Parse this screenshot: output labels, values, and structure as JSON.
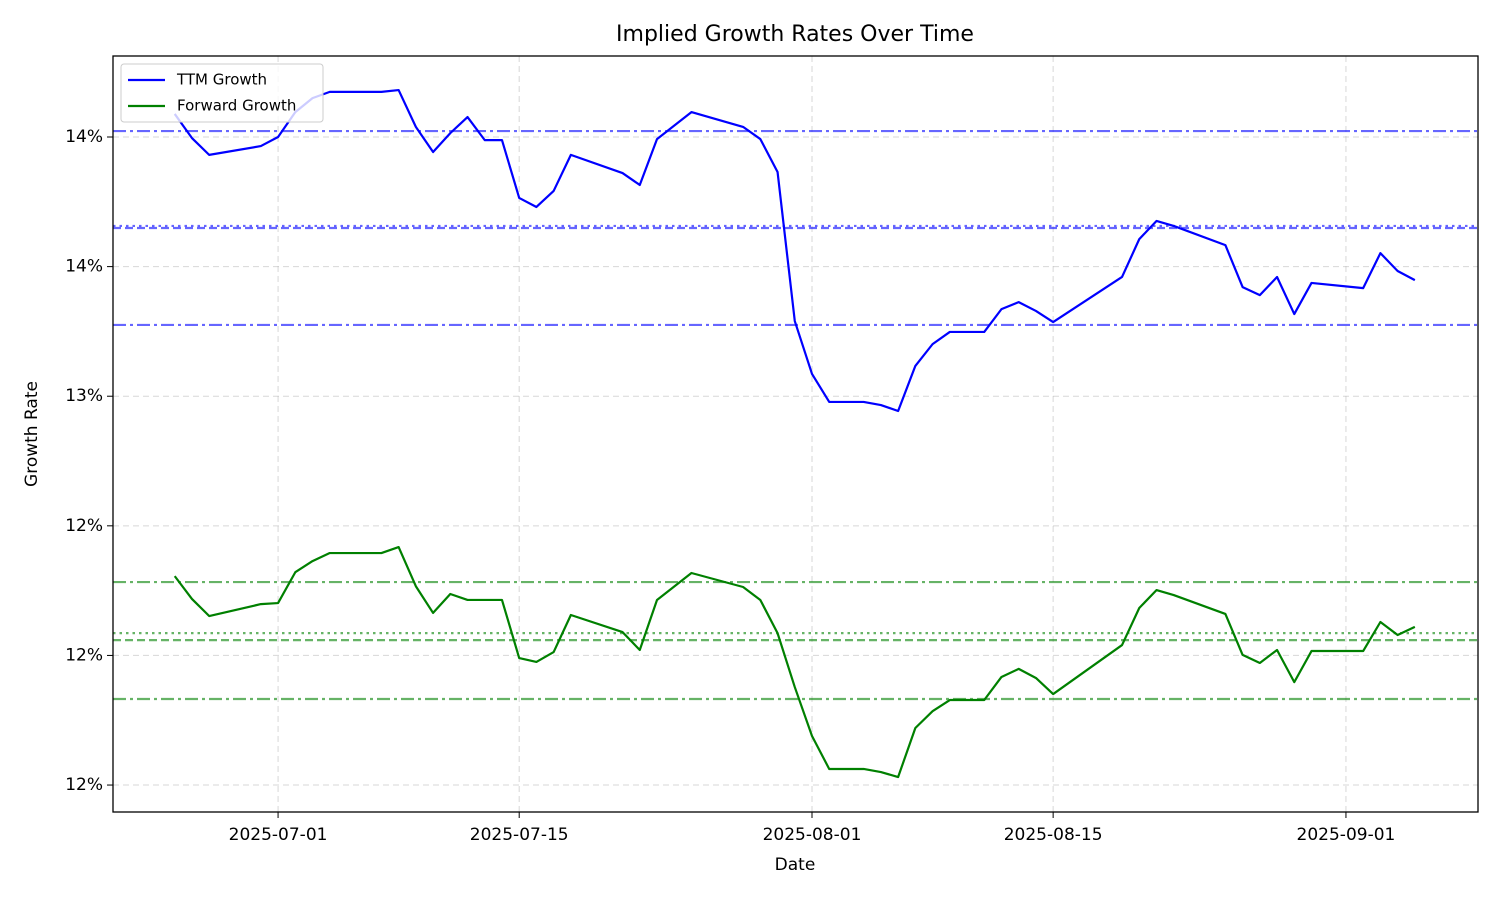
{
  "chart_data": {
    "type": "line",
    "title": "Implied Growth Rates Over Time",
    "x_label": "Date",
    "y_label": "Growth Rate",
    "x": [
      "2025-06-25",
      "2025-06-26",
      "2025-06-27",
      "2025-06-30",
      "2025-07-01",
      "2025-07-02",
      "2025-07-03",
      "2025-07-04",
      "2025-07-07",
      "2025-07-08",
      "2025-07-09",
      "2025-07-10",
      "2025-07-11",
      "2025-07-12",
      "2025-07-13",
      "2025-07-14",
      "2025-07-15",
      "2025-07-16",
      "2025-07-17",
      "2025-07-18",
      "2025-07-21",
      "2025-07-22",
      "2025-07-23",
      "2025-07-25",
      "2025-07-28",
      "2025-07-29",
      "2025-07-30",
      "2025-07-31",
      "2025-08-01",
      "2025-08-02",
      "2025-08-04",
      "2025-08-05",
      "2025-08-06",
      "2025-08-07",
      "2025-08-08",
      "2025-08-09",
      "2025-08-11",
      "2025-08-12",
      "2025-08-13",
      "2025-08-14",
      "2025-08-15",
      "2025-08-19",
      "2025-08-20",
      "2025-08-21",
      "2025-08-22",
      "2025-08-25",
      "2025-08-26",
      "2025-08-27",
      "2025-08-28",
      "2025-08-29",
      "2025-08-30",
      "2025-09-02",
      "2025-09-03",
      "2025-09-04",
      "2025-09-05"
    ],
    "series": [
      {
        "name": "TTM Growth",
        "color": "#0000ff",
        "values": [
          14.089,
          13.996,
          13.931,
          13.965,
          14.0,
          14.096,
          14.15,
          14.174,
          14.174,
          14.181,
          14.039,
          13.942,
          14.015,
          14.077,
          13.988,
          13.988,
          13.765,
          13.73,
          13.792,
          13.931,
          13.861,
          13.815,
          13.992,
          14.096,
          14.039,
          13.992,
          13.865,
          13.29,
          13.086,
          12.978,
          12.978,
          12.966,
          12.943,
          13.117,
          13.201,
          13.248,
          13.248,
          13.336,
          13.363,
          13.329,
          13.286,
          13.46,
          13.606,
          13.676,
          13.657,
          13.583,
          13.421,
          13.39,
          13.46,
          13.317,
          13.437,
          13.417,
          13.552,
          13.483,
          13.448
        ]
      },
      {
        "name": "Forward Growth",
        "color": "#008000",
        "values": [
          12.306,
          12.218,
          12.152,
          12.198,
          12.202,
          12.321,
          12.364,
          12.395,
          12.395,
          12.418,
          12.267,
          12.164,
          12.237,
          12.214,
          12.214,
          12.214,
          11.99,
          11.975,
          12.013,
          12.156,
          12.09,
          12.021,
          12.214,
          12.318,
          12.264,
          12.214,
          12.086,
          11.878,
          11.689,
          11.562,
          11.562,
          11.55,
          11.531,
          11.72,
          11.785,
          11.828,
          11.828,
          11.917,
          11.948,
          11.913,
          11.851,
          12.04,
          12.183,
          12.252,
          12.233,
          12.16,
          12.002,
          11.971,
          12.021,
          11.897,
          12.017,
          12.017,
          12.129,
          12.079,
          12.11
        ]
      }
    ],
    "reference_lines": [
      {
        "value": 14.023,
        "color": "#0000ff",
        "style": "dashdot"
      },
      {
        "value": 13.657,
        "color": "#0000ff",
        "style": "dotted"
      },
      {
        "value": 13.649,
        "color": "#0000ff",
        "style": "dashed"
      },
      {
        "value": 13.275,
        "color": "#0000ff",
        "style": "dashdot"
      },
      {
        "value": 12.283,
        "color": "#008000",
        "style": "dashdot"
      },
      {
        "value": 12.086,
        "color": "#008000",
        "style": "dotted"
      },
      {
        "value": 12.059,
        "color": "#008000",
        "style": "dashed"
      },
      {
        "value": 11.832,
        "color": "#008000",
        "style": "dashdot"
      }
    ],
    "xlim": [
      "2025-06-21T10:00:00Z",
      "2025-09-08T16:00:00Z"
    ],
    "xticks": [
      "2025-07-01",
      "2025-07-15",
      "2025-08-01",
      "2025-08-15",
      "2025-09-01"
    ],
    "ylim": [
      11.396,
      14.3125
    ],
    "yticks": [
      {
        "value": 11.5,
        "label": "12%"
      },
      {
        "value": 12,
        "label": "12%"
      },
      {
        "value": 12.5,
        "label": "12%"
      },
      {
        "value": 13,
        "label": "13%"
      },
      {
        "value": 13.5,
        "label": "14%"
      },
      {
        "value": 14,
        "label": "14%"
      }
    ],
    "grid": true,
    "legend": "upper left"
  }
}
